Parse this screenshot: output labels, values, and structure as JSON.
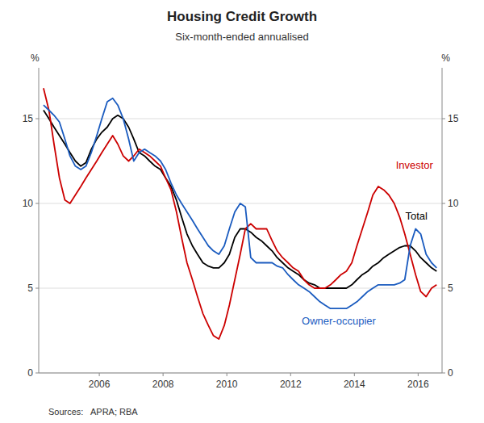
{
  "chart_data": {
    "type": "line",
    "title": "Housing Credit Growth",
    "subtitle": "Six-month-ended annualised",
    "source": "Sources:   APRA; RBA",
    "y_label": "%",
    "y2_label": "%",
    "grid": true,
    "x": [
      2004.25,
      2004.42,
      2004.58,
      2004.75,
      2004.92,
      2005.08,
      2005.25,
      2005.42,
      2005.58,
      2005.75,
      2005.92,
      2006.08,
      2006.25,
      2006.42,
      2006.58,
      2006.75,
      2006.92,
      2007.08,
      2007.25,
      2007.42,
      2007.58,
      2007.75,
      2007.92,
      2008.08,
      2008.25,
      2008.42,
      2008.58,
      2008.75,
      2008.92,
      2009.08,
      2009.25,
      2009.42,
      2009.58,
      2009.75,
      2009.92,
      2010.08,
      2010.25,
      2010.42,
      2010.58,
      2010.75,
      2010.92,
      2011.08,
      2011.25,
      2011.42,
      2011.58,
      2011.75,
      2011.92,
      2012.08,
      2012.25,
      2012.42,
      2012.58,
      2012.75,
      2012.92,
      2013.08,
      2013.25,
      2013.42,
      2013.58,
      2013.75,
      2013.92,
      2014.08,
      2014.25,
      2014.42,
      2014.58,
      2014.75,
      2014.92,
      2015.08,
      2015.25,
      2015.42,
      2015.58,
      2015.75,
      2015.92,
      2016.08,
      2016.25,
      2016.42,
      2016.58
    ],
    "series": [
      {
        "name": "Total",
        "color": "#000000",
        "values": [
          15.5,
          15.0,
          14.5,
          14.0,
          13.5,
          13.0,
          12.5,
          12.2,
          12.4,
          13.2,
          13.8,
          14.2,
          14.5,
          15.0,
          15.2,
          15.0,
          14.5,
          13.8,
          13.0,
          12.8,
          12.5,
          12.2,
          12.0,
          11.5,
          11.0,
          10.2,
          9.2,
          8.2,
          7.5,
          7.0,
          6.5,
          6.3,
          6.2,
          6.2,
          6.5,
          7.0,
          8.0,
          8.5,
          8.5,
          8.3,
          8.0,
          7.8,
          7.5,
          7.2,
          6.8,
          6.5,
          6.2,
          6.0,
          5.8,
          5.5,
          5.3,
          5.2,
          5.0,
          5.0,
          5.0,
          5.0,
          5.0,
          5.0,
          5.2,
          5.5,
          5.8,
          6.0,
          6.3,
          6.5,
          6.8,
          7.0,
          7.2,
          7.4,
          7.5,
          7.5,
          7.2,
          6.8,
          6.5,
          6.2,
          6.0
        ]
      },
      {
        "name": "Investor",
        "color": "#cc0000",
        "values": [
          16.8,
          15.5,
          13.5,
          11.5,
          10.2,
          10.0,
          10.5,
          11.0,
          11.5,
          12.0,
          12.5,
          13.0,
          13.5,
          14.0,
          13.5,
          12.8,
          12.5,
          12.8,
          13.2,
          13.0,
          12.8,
          12.5,
          12.2,
          11.5,
          10.8,
          9.5,
          8.0,
          6.5,
          5.5,
          4.5,
          3.5,
          2.8,
          2.2,
          2.0,
          2.8,
          4.0,
          5.5,
          7.0,
          8.5,
          8.8,
          8.5,
          8.5,
          8.5,
          7.8,
          7.2,
          6.8,
          6.5,
          6.2,
          6.0,
          5.5,
          5.2,
          5.0,
          5.0,
          5.0,
          5.2,
          5.5,
          5.8,
          6.0,
          6.5,
          7.5,
          8.5,
          9.5,
          10.5,
          11.0,
          10.8,
          10.5,
          10.0,
          9.2,
          8.2,
          7.0,
          5.8,
          4.8,
          4.5,
          5.0,
          5.2
        ]
      },
      {
        "name": "Owner-occupier",
        "color": "#1a5bbf",
        "values": [
          15.8,
          15.5,
          15.2,
          14.8,
          13.8,
          12.8,
          12.2,
          12.0,
          12.2,
          13.0,
          14.0,
          15.0,
          16.0,
          16.2,
          15.8,
          15.0,
          13.8,
          12.5,
          13.0,
          13.2,
          13.0,
          12.8,
          12.5,
          12.0,
          11.2,
          10.5,
          10.0,
          9.5,
          9.0,
          8.5,
          8.0,
          7.5,
          7.2,
          7.0,
          7.5,
          8.5,
          9.5,
          10.0,
          9.8,
          6.8,
          6.5,
          6.5,
          6.5,
          6.5,
          6.3,
          6.2,
          5.8,
          5.5,
          5.2,
          5.0,
          4.8,
          4.5,
          4.2,
          4.0,
          3.8,
          3.8,
          3.8,
          3.8,
          4.0,
          4.2,
          4.5,
          4.8,
          5.0,
          5.2,
          5.2,
          5.2,
          5.2,
          5.3,
          5.5,
          7.5,
          8.5,
          8.2,
          7.0,
          6.5,
          6.2
        ]
      }
    ],
    "annotations": [
      {
        "text": "Investor",
        "x": 2015.3,
        "y": 12.2,
        "color": "#cc0000"
      },
      {
        "text": "Total",
        "x": 2015.6,
        "y": 9.2,
        "color": "#000000"
      },
      {
        "text": "Owner-occupier",
        "x": 2012.35,
        "y": 3.0,
        "color": "#1a5bbf"
      }
    ],
    "xlim": [
      2004.1,
      2016.75
    ],
    "xticks": [
      2006,
      2008,
      2010,
      2012,
      2014,
      2016
    ],
    "ylim": [
      0,
      18
    ],
    "yticks": [
      0,
      5,
      10,
      15
    ],
    "y2lim": [
      0,
      18
    ],
    "y2ticks": [
      0,
      5,
      10,
      15
    ]
  }
}
